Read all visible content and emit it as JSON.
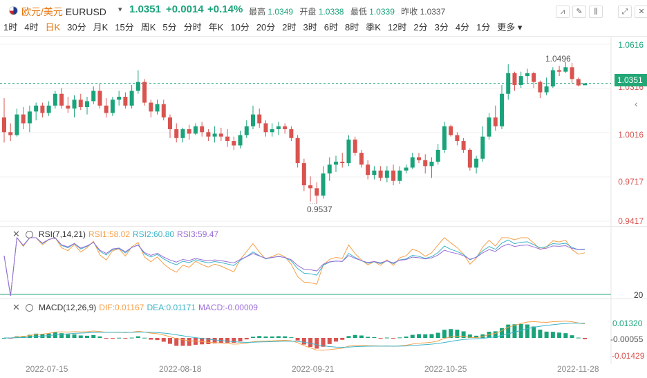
{
  "header": {
    "symbol_cn": "欧元/美元",
    "symbol_code": "EURUSD",
    "price": "1.0351",
    "change": "+0.0014",
    "change_pct": "+0.14%",
    "high_label": "最高",
    "high": "1.0349",
    "open_label": "开盘",
    "open": "1.0338",
    "low_label": "最低",
    "low": "1.0339",
    "prev_label": "昨收",
    "prev": "1.0337"
  },
  "timeframes": [
    "1时",
    "4时",
    "日K",
    "30分",
    "月K",
    "15分",
    "周K",
    "5分",
    "分时",
    "年K",
    "10分",
    "20分",
    "2时",
    "3时",
    "6时",
    "8时",
    "季K",
    "12时",
    "2分",
    "3分",
    "4分",
    "1分",
    "更多"
  ],
  "active_timeframe": "日K",
  "price_axis": [
    "1.0616",
    "1.0316",
    "1.0016",
    "0.9717",
    "0.9417"
  ],
  "current_price_tag": "1.0351",
  "high_mark": "1.0496",
  "low_mark": "0.9537",
  "rsi": {
    "name": "RSI(7,14,21)",
    "rsi1": "RSI1:58.02",
    "rsi2": "RSI2:60.80",
    "rsi3": "RSI3:59.47",
    "level": "20"
  },
  "macd": {
    "name": "MACD(12,26,9)",
    "dif": "DIF:0.01167",
    "dea": "DEA:0.01171",
    "macd": "MACD:-0.00009",
    "axis": [
      "0.01320",
      "-0.00055",
      "-0.01429"
    ]
  },
  "x_axis": [
    "2022-07-15",
    "2022-08-18",
    "2022-09-21",
    "2022-10-25",
    "2022-11-28"
  ],
  "colors": {
    "up": "#1aa37a",
    "down": "#d9534f",
    "rsi1": "#f5a04a",
    "rsi2": "#3bb3c8",
    "rsi3": "#9a6dd7"
  },
  "chart_data": {
    "type": "candlestick",
    "ohlc": [
      [
        1.012,
        1.025,
        0.995,
        1.002
      ],
      [
        1.002,
        1.008,
        0.996,
        1.0
      ],
      [
        1.0,
        1.018,
        0.999,
        1.014
      ],
      [
        1.014,
        1.019,
        1.004,
        1.008
      ],
      [
        1.008,
        1.02,
        1.002,
        1.016
      ],
      [
        1.016,
        1.022,
        1.01,
        1.02
      ],
      [
        1.02,
        1.022,
        1.012,
        1.015
      ],
      [
        1.015,
        1.023,
        1.013,
        1.02
      ],
      [
        1.02,
        1.03,
        1.018,
        1.028
      ],
      [
        1.028,
        1.032,
        1.018,
        1.02
      ],
      [
        1.02,
        1.026,
        1.015,
        1.018
      ],
      [
        1.018,
        1.027,
        1.012,
        1.024
      ],
      [
        1.024,
        1.028,
        1.017,
        1.019
      ],
      [
        1.019,
        1.026,
        1.014,
        1.023
      ],
      [
        1.023,
        1.033,
        1.021,
        1.03
      ],
      [
        1.03,
        1.035,
        1.018,
        1.02
      ],
      [
        1.02,
        1.025,
        1.012,
        1.015
      ],
      [
        1.015,
        1.026,
        1.013,
        1.024
      ],
      [
        1.024,
        1.03,
        1.02,
        1.026
      ],
      [
        1.026,
        1.029,
        1.018,
        1.02
      ],
      [
        1.02,
        1.034,
        1.018,
        1.03
      ],
      [
        1.03,
        1.044,
        1.028,
        1.036
      ],
      [
        1.036,
        1.038,
        1.02,
        1.022
      ],
      [
        1.022,
        1.024,
        1.012,
        1.016
      ],
      [
        1.016,
        1.024,
        1.014,
        1.021
      ],
      [
        1.021,
        1.024,
        1.01,
        1.012
      ],
      [
        1.012,
        1.014,
        0.998,
        1.004
      ],
      [
        1.004,
        1.008,
        0.995,
        0.998
      ],
      [
        0.998,
        1.005,
        0.995,
        1.004
      ],
      [
        1.004,
        1.007,
        0.997,
        1.001
      ],
      [
        1.001,
        1.008,
        1.0,
        1.006
      ],
      [
        1.006,
        1.009,
        0.999,
        1.002
      ],
      [
        1.002,
        1.004,
        0.996,
        0.999
      ],
      [
        0.999,
        1.006,
        0.995,
        1.001
      ],
      [
        1.001,
        1.005,
        0.996,
        0.999
      ],
      [
        0.999,
        1.004,
        0.992,
        0.996
      ],
      [
        0.996,
        0.999,
        0.99,
        0.993
      ],
      [
        0.993,
        1.003,
        0.991,
        1.0
      ],
      [
        1.0,
        1.01,
        0.998,
        1.006
      ],
      [
        1.006,
        1.02,
        1.004,
        1.014
      ],
      [
        1.014,
        1.018,
        1.005,
        1.008
      ],
      [
        1.008,
        1.01,
        0.999,
        1.002
      ],
      [
        1.002,
        1.008,
        0.999,
        1.004
      ],
      [
        1.004,
        1.009,
        1.0,
        1.006
      ],
      [
        1.006,
        1.008,
        1.001,
        1.004
      ],
      [
        1.004,
        1.006,
        0.996,
        0.998
      ],
      [
        0.998,
        1.0,
        0.978,
        0.981
      ],
      [
        0.981,
        0.984,
        0.962,
        0.966
      ],
      [
        0.966,
        0.972,
        0.955,
        0.964
      ],
      [
        0.964,
        0.968,
        0.9537,
        0.959
      ],
      [
        0.959,
        0.979,
        0.957,
        0.974
      ],
      [
        0.974,
        0.985,
        0.969,
        0.98
      ],
      [
        0.98,
        0.986,
        0.975,
        0.982
      ],
      [
        0.982,
        0.988,
        0.978,
        0.981
      ],
      [
        0.981,
        1.0,
        0.979,
        0.997
      ],
      [
        0.997,
        0.999,
        0.986,
        0.988
      ],
      [
        0.988,
        0.99,
        0.978,
        0.98
      ],
      [
        0.98,
        0.983,
        0.97,
        0.973
      ],
      [
        0.973,
        0.979,
        0.97,
        0.976
      ],
      [
        0.976,
        0.979,
        0.969,
        0.971
      ],
      [
        0.971,
        0.979,
        0.968,
        0.976
      ],
      [
        0.976,
        0.98,
        0.966,
        0.969
      ],
      [
        0.969,
        0.979,
        0.967,
        0.976
      ],
      [
        0.976,
        0.98,
        0.974,
        0.978
      ],
      [
        0.978,
        0.988,
        0.977,
        0.985
      ],
      [
        0.985,
        0.988,
        0.981,
        0.983
      ],
      [
        0.983,
        0.987,
        0.974,
        0.979
      ],
      [
        0.979,
        0.985,
        0.971,
        0.982
      ],
      [
        0.982,
        0.994,
        0.98,
        0.99
      ],
      [
        0.99,
        1.009,
        0.988,
        1.006
      ],
      [
        1.006,
        1.007,
        0.999,
        1.0
      ],
      [
        1.0,
        1.002,
        0.993,
        0.996
      ],
      [
        0.996,
        0.998,
        0.988,
        0.99
      ],
      [
        0.99,
        0.991,
        0.976,
        0.978
      ],
      [
        0.978,
        0.986,
        0.974,
        0.984
      ],
      [
        0.984,
        1.006,
        0.982,
        0.999
      ],
      [
        0.999,
        1.015,
        0.997,
        1.012
      ],
      [
        1.012,
        1.02,
        1.003,
        1.006
      ],
      [
        1.006,
        1.034,
        1.004,
        1.028
      ],
      [
        1.028,
        1.048,
        1.024,
        1.042
      ],
      [
        1.042,
        1.043,
        1.03,
        1.034
      ],
      [
        1.034,
        1.043,
        1.032,
        1.04
      ],
      [
        1.04,
        1.045,
        1.035,
        1.042
      ],
      [
        1.042,
        1.043,
        1.032,
        1.036
      ],
      [
        1.036,
        1.037,
        1.025,
        1.029
      ],
      [
        1.029,
        1.039,
        1.027,
        1.033
      ],
      [
        1.033,
        1.046,
        1.032,
        1.044
      ],
      [
        1.044,
        1.047,
        1.04,
        1.043
      ],
      [
        1.043,
        1.0496,
        1.042,
        1.046
      ],
      [
        1.046,
        1.049,
        1.035,
        1.038
      ],
      [
        1.038,
        1.039,
        1.033,
        1.0337
      ],
      [
        1.0338,
        1.0349,
        1.0339,
        1.0351
      ]
    ]
  }
}
